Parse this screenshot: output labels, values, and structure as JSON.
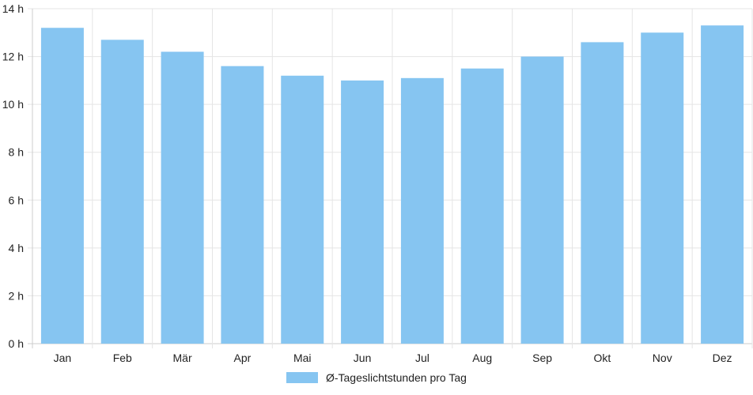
{
  "chart_data": {
    "type": "bar",
    "categories": [
      "Jan",
      "Feb",
      "Mär",
      "Apr",
      "Mai",
      "Jun",
      "Jul",
      "Aug",
      "Sep",
      "Okt",
      "Nov",
      "Dez"
    ],
    "series": [
      {
        "name": "Ø-Tageslichtstunden pro Tag",
        "values": [
          13.2,
          12.7,
          12.2,
          11.6,
          11.2,
          11.0,
          11.1,
          11.5,
          12.0,
          12.6,
          13.0,
          13.3
        ]
      }
    ],
    "ylim": [
      0,
      14
    ],
    "yticks": [
      0,
      2,
      4,
      6,
      8,
      10,
      12,
      14
    ],
    "ytick_suffix": " h",
    "grid": true,
    "legend_position": "bottom",
    "colors": {
      "bar": "#86c5f1",
      "grid": "#e5e5e5",
      "axis": "#cccccc"
    }
  }
}
